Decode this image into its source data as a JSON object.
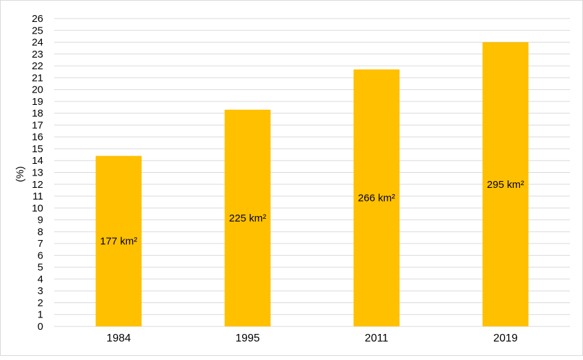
{
  "chart_data": {
    "type": "bar",
    "categories": [
      "1984",
      "1995",
      "2011",
      "2019"
    ],
    "values": [
      14.4,
      18.3,
      21.7,
      24.0
    ],
    "data_labels": [
      "177 km²",
      "225 km²",
      "266 km²",
      "295 km²"
    ],
    "title": "",
    "xlabel": "",
    "ylabel": "(%)",
    "ylim": [
      0,
      26
    ],
    "ytick_step": 1,
    "grid": true,
    "legend": "none",
    "bar_color": "#FFC000",
    "grid_color": "#d9d9d9",
    "text_color": "#000000"
  }
}
